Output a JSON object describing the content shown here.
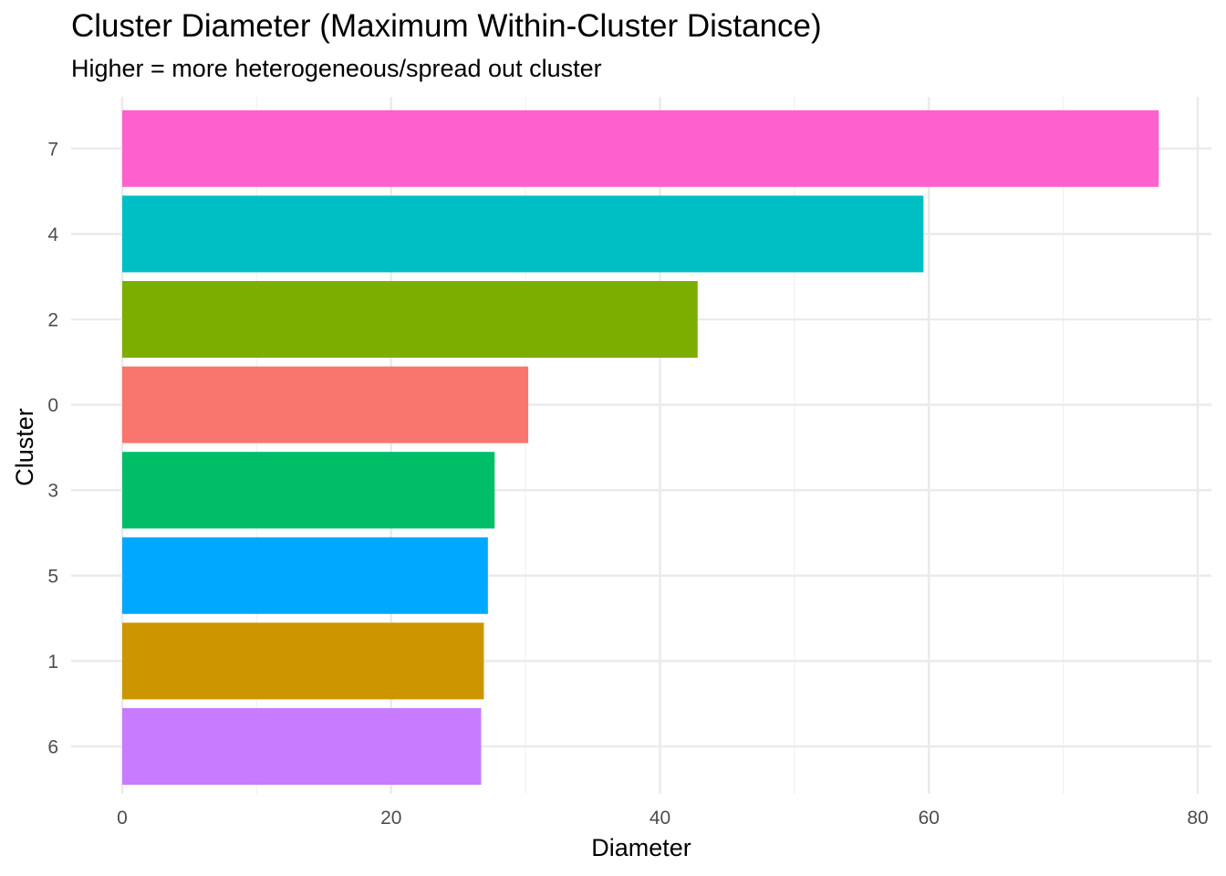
{
  "chart_data": {
    "type": "bar",
    "orientation": "horizontal",
    "title": "Cluster Diameter (Maximum Within-Cluster Distance)",
    "subtitle": "Higher = more heterogeneous/spread out cluster",
    "xlabel": "Diameter",
    "ylabel": "Cluster",
    "xlim": [
      0,
      80
    ],
    "x_ticks": [
      0,
      20,
      40,
      60,
      80
    ],
    "x_tick_labels": [
      "0",
      "20",
      "40",
      "60",
      "80"
    ],
    "grid": true,
    "legend": "none",
    "categories": [
      "7",
      "4",
      "2",
      "0",
      "3",
      "5",
      "1",
      "6"
    ],
    "values": [
      77.1,
      59.6,
      42.8,
      30.2,
      27.7,
      27.2,
      26.9,
      26.7
    ],
    "colors": [
      "#FF61CC",
      "#00BFC4",
      "#7CAE00",
      "#F8766D",
      "#00BE67",
      "#00A9FF",
      "#CD9600",
      "#C77CFF"
    ]
  }
}
